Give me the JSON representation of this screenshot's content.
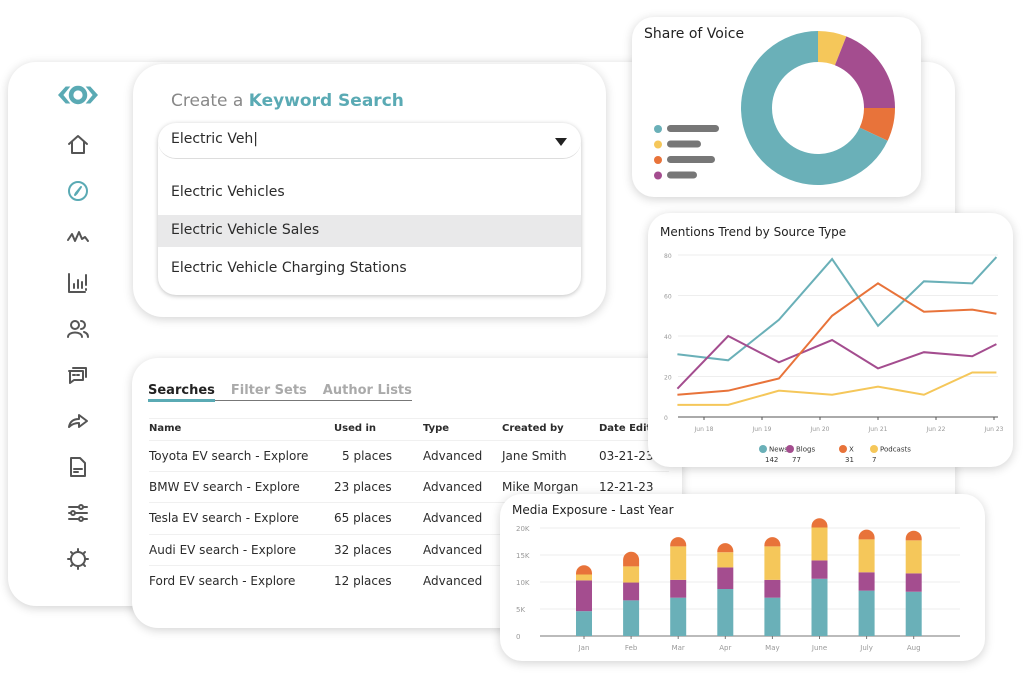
{
  "sidebar": {
    "logo": "eye-logo",
    "items": [
      {
        "icon": "home-icon"
      },
      {
        "icon": "compass-icon",
        "active": true
      },
      {
        "icon": "pulse-icon"
      },
      {
        "icon": "bar-chart-alert-icon"
      },
      {
        "icon": "users-icon"
      },
      {
        "icon": "messages-icon"
      },
      {
        "icon": "share-arrow-icon"
      },
      {
        "icon": "document-icon"
      },
      {
        "icon": "sliders-icon"
      },
      {
        "icon": "gear-icon"
      }
    ]
  },
  "keyword": {
    "title_prefix": "Create a ",
    "title_emph": "Keyword Search",
    "input_value": "Electric Veh|",
    "options": [
      "Electric Vehicles",
      "Electric Vehicle Sales",
      "Electric Vehicle Charging Stations"
    ],
    "highlighted": 1
  },
  "table": {
    "tabs": [
      "Searches",
      "Filter Sets",
      "Author Lists"
    ],
    "active_tab": 0,
    "columns": [
      "Name",
      "Used in",
      "Type",
      "Created by",
      "Date Edite"
    ],
    "rows": [
      [
        "Toyota EV search - Explore",
        "5 places",
        "Advanced",
        "Jane Smith",
        "03-21-23"
      ],
      [
        "BMW EV search - Explore",
        "23 places",
        "Advanced",
        "Mike Morgan",
        "12-21-23"
      ],
      [
        "Tesla EV search - Explore",
        "65 places",
        "Advanced",
        "",
        ""
      ],
      [
        "Audi EV search - Explore",
        "32 places",
        "Advanced",
        "",
        ""
      ],
      [
        "Ford EV search - Explore",
        "12 places",
        "Advanced",
        "",
        ""
      ]
    ]
  },
  "colors": {
    "teal": "#6ab0b8",
    "yellow": "#f5c75a",
    "purple": "#a44d8f",
    "orange": "#e8733a",
    "accent": "#5aaab4"
  },
  "chart_data": [
    {
      "type": "pie",
      "title": "Share of Voice",
      "donut": true,
      "slices": [
        {
          "color": "#f5c75a",
          "value": 6
        },
        {
          "color": "#a44d8f",
          "value": 19
        },
        {
          "color": "#e8733a",
          "value": 7
        },
        {
          "color": "#6ab0b8",
          "value": 68
        }
      ],
      "legend_labels_redacted": true
    },
    {
      "type": "line",
      "title": "Mentions Trend by Source Type",
      "ylim": [
        0,
        80
      ],
      "yticks": [
        0,
        20,
        40,
        60,
        80
      ],
      "xticks": [
        "Jun 18",
        "Jun 19",
        "Jun 20",
        "Jun 21",
        "Jun 22",
        "Jun 23"
      ],
      "grid": true,
      "legend": "bottom",
      "x": [
        "Jun 17 13:00",
        "Jun 18 10:00",
        "Jun 19 07:00",
        "Jun 20 05:00",
        "Jun 21 00:00",
        "Jun 21 19:00",
        "Jun 22 15:00",
        "Jun 23 01:00"
      ],
      "series": [
        {
          "name": "News",
          "total": "142",
          "color": "#6ab0b8",
          "values": [
            31,
            28,
            48,
            78,
            45,
            67,
            66,
            79
          ]
        },
        {
          "name": "Blogs",
          "total": "77",
          "color": "#a44d8f",
          "values": [
            14,
            40,
            27,
            38,
            24,
            32,
            30,
            36
          ]
        },
        {
          "name": "X",
          "total": "31",
          "color": "#e8733a",
          "values": [
            11,
            13,
            19,
            50,
            66,
            52,
            53,
            51
          ]
        },
        {
          "name": "Podcasts",
          "total": "7",
          "color": "#f5c75a",
          "values": [
            6,
            6,
            13,
            11,
            15,
            11,
            22,
            22
          ]
        }
      ]
    },
    {
      "type": "bar",
      "stacked": true,
      "title": "Media Exposure - Last Year",
      "ylim": [
        0,
        20000
      ],
      "yticks": [
        "0",
        "5K",
        "10K",
        "15K",
        "20K"
      ],
      "ytick_values": [
        0,
        5000,
        10000,
        15000,
        20000
      ],
      "grid": true,
      "categories": [
        "Jan",
        "Feb",
        "Mar",
        "Apr",
        "May",
        "June",
        "July",
        "Aug"
      ],
      "series": [
        {
          "color": "#6ab0b8",
          "values": [
            4600,
            6600,
            7100,
            8700,
            7100,
            10600,
            8400,
            8200
          ]
        },
        {
          "color": "#a44d8f",
          "values": [
            5700,
            3300,
            3300,
            4000,
            3300,
            3400,
            3400,
            3400
          ]
        },
        {
          "color": "#f5c75a",
          "values": [
            1100,
            3000,
            6200,
            2800,
            6200,
            6100,
            6100,
            6100
          ]
        },
        {
          "color": "#e8733a",
          "values": [
            1700,
            2700,
            1700,
            1700,
            1700,
            1700,
            1800,
            1800
          ]
        }
      ]
    }
  ]
}
